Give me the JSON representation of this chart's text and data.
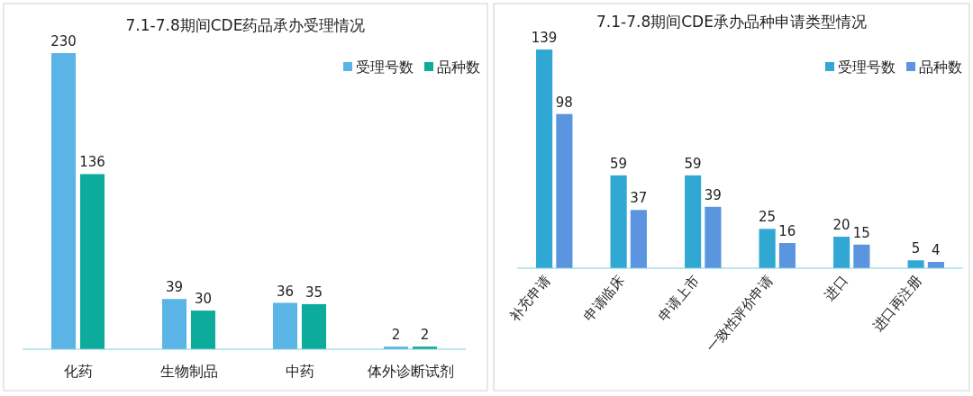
{
  "chart_data": [
    {
      "type": "bar",
      "title": "7.1-7.8期间CDE药品承办受理情况",
      "categories": [
        "化药",
        "生物制品",
        "中药",
        "体外诊断试剂"
      ],
      "series": [
        {
          "name": "受理号数",
          "color": "#5ab4e5",
          "values": [
            230,
            39,
            36,
            2
          ]
        },
        {
          "name": "品种数",
          "color": "#0dab9c",
          "values": [
            136,
            30,
            35,
            2
          ]
        }
      ],
      "data_labels": true,
      "legend": "top right"
    },
    {
      "type": "bar",
      "title": "7.1-7.8期间CDE承办品种申请类型情况",
      "categories": [
        "补充申请",
        "申请临床",
        "申请上市",
        "一致性评价申请",
        "进口",
        "进口再注册"
      ],
      "series": [
        {
          "name": "受理号数",
          "color": "#31a8d4",
          "values": [
            139,
            59,
            59,
            25,
            20,
            5
          ]
        },
        {
          "name": "品种数",
          "color": "#5b95e0",
          "values": [
            98,
            37,
            39,
            16,
            15,
            4
          ]
        }
      ],
      "data_labels": true,
      "legend": "top right"
    }
  ]
}
